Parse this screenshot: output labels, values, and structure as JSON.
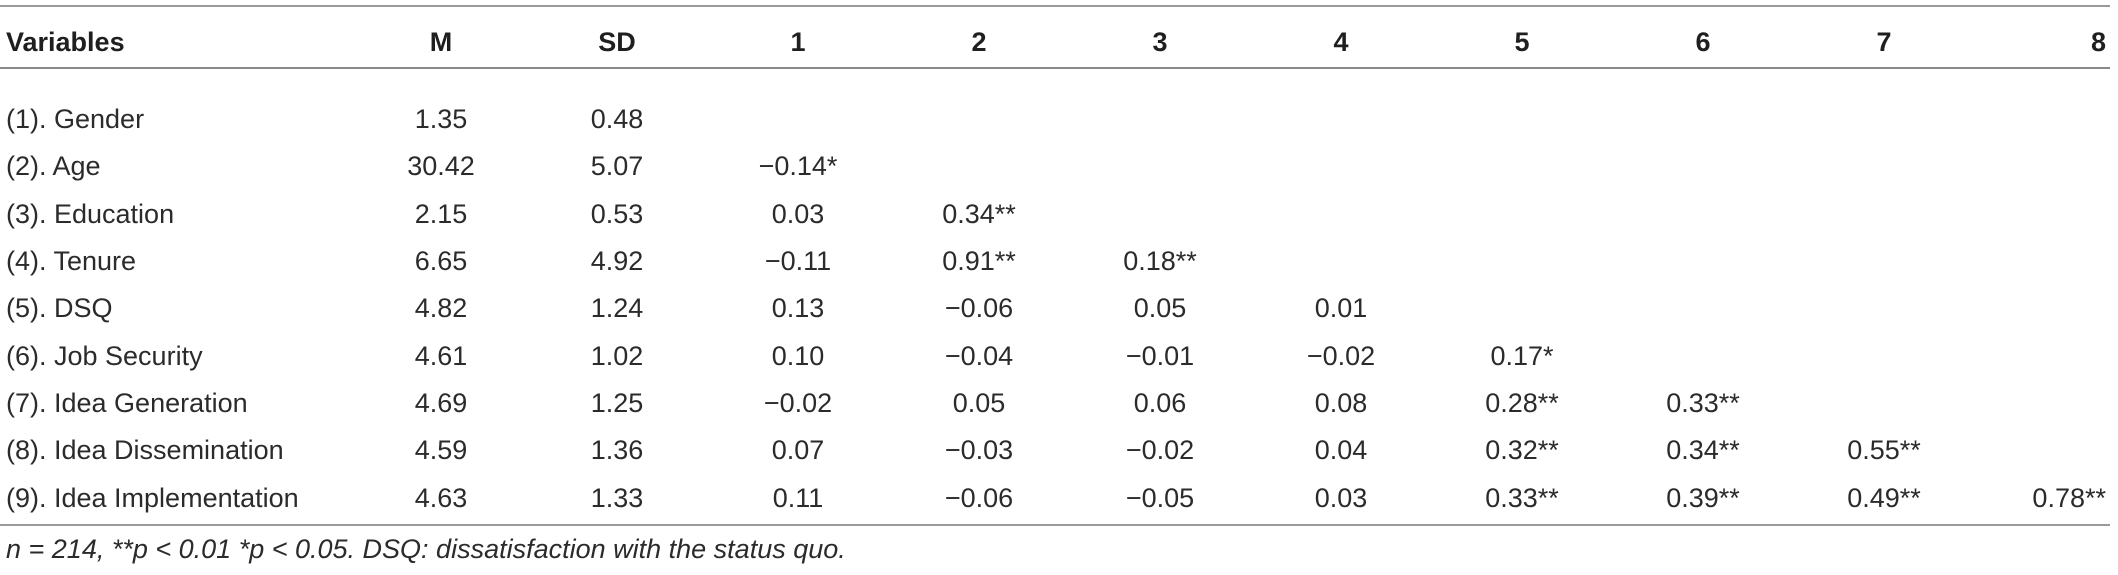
{
  "table": {
    "columns": [
      "Variables",
      "M",
      "SD",
      "1",
      "2",
      "3",
      "4",
      "5",
      "6",
      "7",
      "8"
    ],
    "rows": [
      [
        "(1). Gender",
        "1.35",
        "0.48",
        "",
        "",
        "",
        "",
        "",
        "",
        "",
        ""
      ],
      [
        "(2). Age",
        "30.42",
        "5.07",
        "−0.14*",
        "",
        "",
        "",
        "",
        "",
        "",
        ""
      ],
      [
        "(3). Education",
        "2.15",
        "0.53",
        "0.03",
        "0.34**",
        "",
        "",
        "",
        "",
        "",
        ""
      ],
      [
        "(4). Tenure",
        "6.65",
        "4.92",
        "−0.11",
        "0.91**",
        "0.18**",
        "",
        "",
        "",
        "",
        ""
      ],
      [
        "(5). DSQ",
        "4.82",
        "1.24",
        "0.13",
        "−0.06",
        "0.05",
        "0.01",
        "",
        "",
        "",
        ""
      ],
      [
        "(6). Job Security",
        "4.61",
        "1.02",
        "0.10",
        "−0.04",
        "−0.01",
        "−0.02",
        "0.17*",
        "",
        "",
        ""
      ],
      [
        "(7). Idea Generation",
        "4.69",
        "1.25",
        "−0.02",
        "0.05",
        "0.06",
        "0.08",
        "0.28**",
        "0.33**",
        "",
        ""
      ],
      [
        "(8). Idea Dissemination",
        "4.59",
        "1.36",
        "0.07",
        "−0.03",
        "−0.02",
        "0.04",
        "0.32**",
        "0.34**",
        "0.55**",
        ""
      ],
      [
        "(9). Idea Implementation",
        "4.63",
        "1.33",
        "0.11",
        "−0.06",
        "−0.05",
        "0.03",
        "0.33**",
        "0.39**",
        "0.49**",
        "0.78**"
      ]
    ]
  },
  "note": "n = 214, **p < 0.01 *p < 0.05. DSQ: dissatisfaction with the status quo."
}
